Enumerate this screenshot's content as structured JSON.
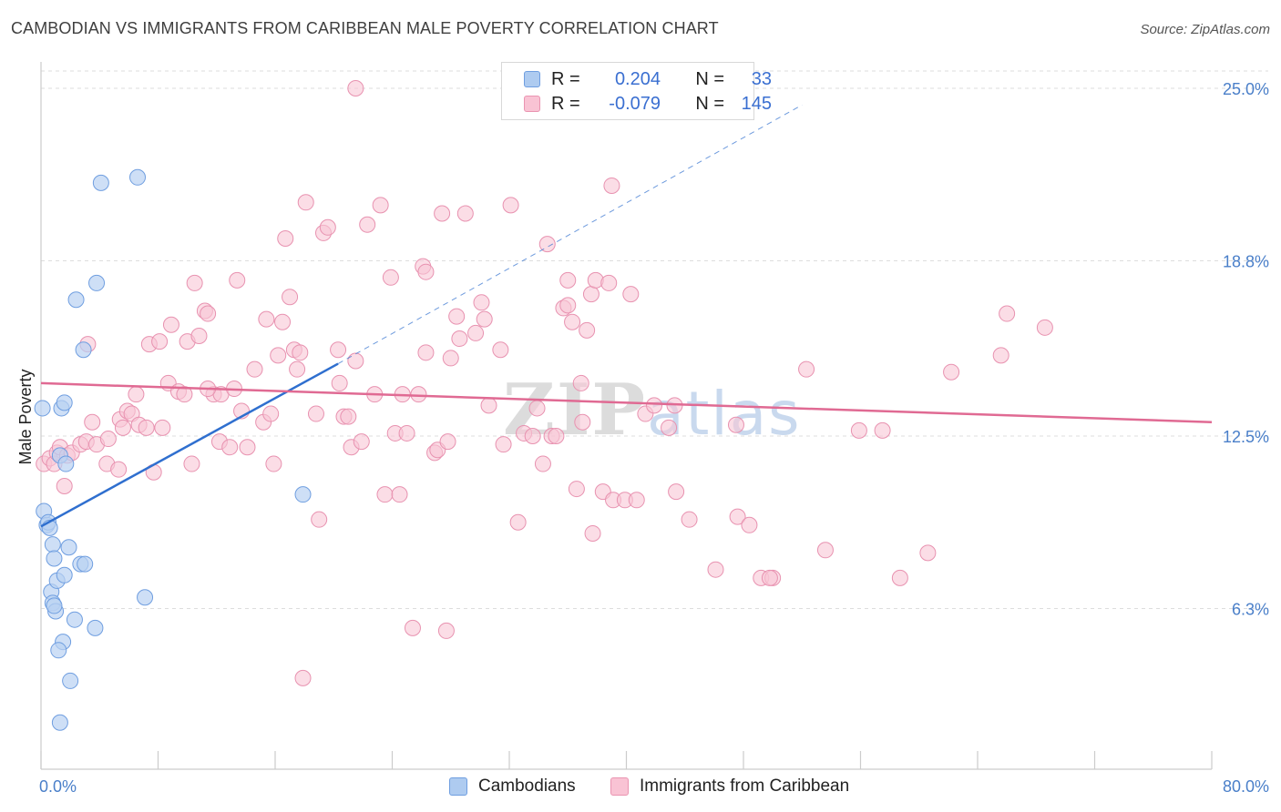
{
  "title": "CAMBODIAN VS IMMIGRANTS FROM CARIBBEAN MALE POVERTY CORRELATION CHART",
  "source": "Source: ZipAtlas.com",
  "watermark": {
    "zip": "ZIP",
    "atlas": "atlas"
  },
  "legend": {
    "rows": [
      {
        "r_label": "R =",
        "r_value": "0.204",
        "n_label": "N =",
        "n_value": "33",
        "color": "#aecbf0",
        "border": "#6f9ee0"
      },
      {
        "r_label": "R =",
        "r_value": "-0.079",
        "n_label": "N =",
        "n_value": "145",
        "color": "#f9c3d4",
        "border": "#ea94b1"
      }
    ]
  },
  "bottom_legend": {
    "series1": "Cambodians",
    "series2": "Immigrants from Caribbean"
  },
  "colors": {
    "blue_fill": "#b9d2f2",
    "blue_stroke": "#6f9ee0",
    "blue_line": "#2f6fcf",
    "pink_fill": "#f8c6d6",
    "pink_stroke": "#e892b0",
    "pink_line": "#e06a93",
    "tick_text": "#4a7fc9",
    "grid": "#dddddd"
  },
  "chart_data": {
    "type": "scatter",
    "title": "CAMBODIAN VS IMMIGRANTS FROM CARIBBEAN MALE POVERTY CORRELATION CHART",
    "xlabel": "",
    "ylabel": "Male Poverty",
    "xlim": [
      0,
      80
    ],
    "ylim": [
      0,
      25.5
    ],
    "x_tick_labels": [
      "0.0%",
      "80.0%"
    ],
    "y_ticks": [
      6.3,
      12.5,
      18.8,
      25.0
    ],
    "y_tick_labels": [
      "6.3%",
      "12.5%",
      "18.8%",
      "25.0%"
    ],
    "series": [
      {
        "name": "Cambodians",
        "r": 0.204,
        "n": 33,
        "trend": {
          "x": [
            0,
            20.3
          ],
          "y": [
            9.25,
            15.1
          ],
          "dashed_to": [
            52,
            24.4
          ]
        },
        "points": [
          [
            0.1,
            13.5
          ],
          [
            0.2,
            9.8
          ],
          [
            0.4,
            9.3
          ],
          [
            0.5,
            9.4
          ],
          [
            0.6,
            9.2
          ],
          [
            0.8,
            8.6
          ],
          [
            0.9,
            8.1
          ],
          [
            0.7,
            6.9
          ],
          [
            0.8,
            6.5
          ],
          [
            1.0,
            6.2
          ],
          [
            1.1,
            7.3
          ],
          [
            1.3,
            11.8
          ],
          [
            1.4,
            13.5
          ],
          [
            1.6,
            13.7
          ],
          [
            1.6,
            7.5
          ],
          [
            1.5,
            5.1
          ],
          [
            1.7,
            11.5
          ],
          [
            1.9,
            8.5
          ],
          [
            2.0,
            3.7
          ],
          [
            2.3,
            5.9
          ],
          [
            2.4,
            17.4
          ],
          [
            2.7,
            7.9
          ],
          [
            2.9,
            15.6
          ],
          [
            3.0,
            7.9
          ],
          [
            3.7,
            5.6
          ],
          [
            3.8,
            18.0
          ],
          [
            4.1,
            21.6
          ],
          [
            6.6,
            21.8
          ],
          [
            7.1,
            6.7
          ],
          [
            17.9,
            10.4
          ],
          [
            1.2,
            4.8
          ],
          [
            1.3,
            2.2
          ],
          [
            0.9,
            6.4
          ]
        ]
      },
      {
        "name": "Immigrants from Caribbean",
        "r": -0.079,
        "n": 145,
        "trend": {
          "x": [
            0,
            80
          ],
          "y": [
            14.4,
            13.0
          ]
        },
        "points": [
          [
            0.2,
            11.5
          ],
          [
            0.6,
            11.7
          ],
          [
            0.9,
            11.5
          ],
          [
            1.1,
            11.9
          ],
          [
            1.3,
            12.1
          ],
          [
            1.6,
            10.7
          ],
          [
            1.8,
            11.8
          ],
          [
            2.1,
            11.9
          ],
          [
            2.7,
            12.2
          ],
          [
            3.1,
            12.3
          ],
          [
            3.2,
            15.8
          ],
          [
            3.5,
            13.0
          ],
          [
            3.8,
            12.2
          ],
          [
            4.5,
            11.5
          ],
          [
            4.6,
            12.4
          ],
          [
            5.3,
            11.3
          ],
          [
            5.4,
            13.1
          ],
          [
            5.6,
            12.8
          ],
          [
            5.9,
            13.4
          ],
          [
            6.2,
            13.3
          ],
          [
            6.5,
            14.0
          ],
          [
            6.7,
            12.9
          ],
          [
            7.2,
            12.8
          ],
          [
            7.4,
            15.8
          ],
          [
            7.7,
            11.2
          ],
          [
            8.1,
            15.9
          ],
          [
            8.3,
            12.8
          ],
          [
            8.7,
            14.4
          ],
          [
            8.9,
            16.5
          ],
          [
            9.4,
            14.1
          ],
          [
            9.8,
            14.0
          ],
          [
            10.0,
            15.9
          ],
          [
            10.3,
            11.5
          ],
          [
            10.5,
            18.0
          ],
          [
            10.8,
            16.1
          ],
          [
            11.2,
            17.0
          ],
          [
            11.4,
            16.9
          ],
          [
            11.8,
            14.0
          ],
          [
            12.2,
            12.3
          ],
          [
            12.3,
            14.0
          ],
          [
            12.9,
            12.1
          ],
          [
            13.2,
            14.2
          ],
          [
            13.4,
            18.1
          ],
          [
            13.7,
            13.4
          ],
          [
            14.1,
            12.1
          ],
          [
            14.6,
            14.9
          ],
          [
            15.2,
            13.0
          ],
          [
            15.4,
            16.7
          ],
          [
            15.7,
            13.3
          ],
          [
            15.9,
            11.5
          ],
          [
            16.2,
            15.4
          ],
          [
            16.5,
            16.6
          ],
          [
            16.7,
            19.6
          ],
          [
            17.0,
            17.5
          ],
          [
            17.3,
            15.6
          ],
          [
            17.5,
            14.9
          ],
          [
            17.7,
            15.5
          ],
          [
            18.1,
            20.9
          ],
          [
            18.8,
            13.3
          ],
          [
            19.0,
            9.5
          ],
          [
            19.3,
            19.8
          ],
          [
            19.6,
            20.0
          ],
          [
            20.3,
            15.6
          ],
          [
            20.7,
            13.2
          ],
          [
            21.0,
            13.2
          ],
          [
            21.2,
            12.1
          ],
          [
            21.5,
            15.2
          ],
          [
            21.9,
            12.3
          ],
          [
            22.3,
            20.1
          ],
          [
            22.8,
            14.0
          ],
          [
            23.2,
            20.8
          ],
          [
            23.5,
            10.4
          ],
          [
            23.9,
            18.2
          ],
          [
            24.2,
            12.6
          ],
          [
            24.5,
            10.4
          ],
          [
            24.7,
            14.0
          ],
          [
            25.0,
            12.6
          ],
          [
            25.4,
            5.6
          ],
          [
            25.8,
            14.0
          ],
          [
            26.1,
            18.6
          ],
          [
            26.3,
            15.5
          ],
          [
            26.9,
            11.9
          ],
          [
            27.1,
            12.0
          ],
          [
            27.4,
            20.5
          ],
          [
            27.8,
            12.3
          ],
          [
            28.0,
            15.3
          ],
          [
            28.4,
            16.8
          ],
          [
            28.6,
            16.0
          ],
          [
            29.0,
            20.5
          ],
          [
            29.7,
            16.2
          ],
          [
            30.1,
            17.3
          ],
          [
            30.3,
            16.7
          ],
          [
            30.6,
            13.6
          ],
          [
            31.4,
            15.6
          ],
          [
            31.6,
            12.2
          ],
          [
            32.1,
            20.8
          ],
          [
            32.6,
            9.4
          ],
          [
            33.0,
            12.6
          ],
          [
            33.6,
            12.5
          ],
          [
            34.3,
            11.5
          ],
          [
            33.9,
            13.5
          ],
          [
            34.6,
            19.4
          ],
          [
            34.9,
            12.5
          ],
          [
            35.2,
            12.5
          ],
          [
            35.7,
            17.1
          ],
          [
            36.0,
            17.2
          ],
          [
            36.3,
            16.6
          ],
          [
            36.6,
            10.6
          ],
          [
            36.9,
            14.4
          ],
          [
            37.3,
            16.3
          ],
          [
            37.6,
            17.6
          ],
          [
            37.9,
            18.1
          ],
          [
            38.8,
            18.0
          ],
          [
            39.0,
            21.5
          ],
          [
            38.4,
            10.5
          ],
          [
            39.1,
            10.2
          ],
          [
            39.9,
            10.2
          ],
          [
            40.3,
            17.6
          ],
          [
            41.3,
            13.3
          ],
          [
            41.9,
            13.6
          ],
          [
            43.4,
            10.5
          ],
          [
            44.3,
            9.5
          ],
          [
            46.1,
            7.7
          ],
          [
            47.6,
            9.6
          ],
          [
            48.4,
            9.3
          ],
          [
            49.2,
            7.4
          ],
          [
            50.0,
            7.4
          ],
          [
            52.3,
            14.9
          ],
          [
            53.6,
            8.4
          ],
          [
            55.9,
            12.7
          ],
          [
            57.5,
            12.7
          ],
          [
            58.7,
            7.4
          ],
          [
            60.6,
            8.3
          ],
          [
            62.2,
            14.8
          ],
          [
            65.6,
            15.4
          ],
          [
            66.0,
            16.9
          ],
          [
            68.6,
            16.4
          ],
          [
            43.3,
            13.6
          ],
          [
            42.9,
            12.8
          ],
          [
            47.5,
            12.9
          ],
          [
            37.7,
            9.0
          ],
          [
            40.7,
            10.2
          ],
          [
            36.0,
            18.1
          ],
          [
            17.9,
            3.8
          ],
          [
            27.7,
            5.5
          ],
          [
            37.0,
            13.0
          ],
          [
            20.4,
            14.4
          ],
          [
            49.8,
            7.4
          ],
          [
            26.3,
            18.4
          ],
          [
            21.5,
            25.0
          ],
          [
            11.4,
            14.2
          ]
        ]
      }
    ]
  }
}
